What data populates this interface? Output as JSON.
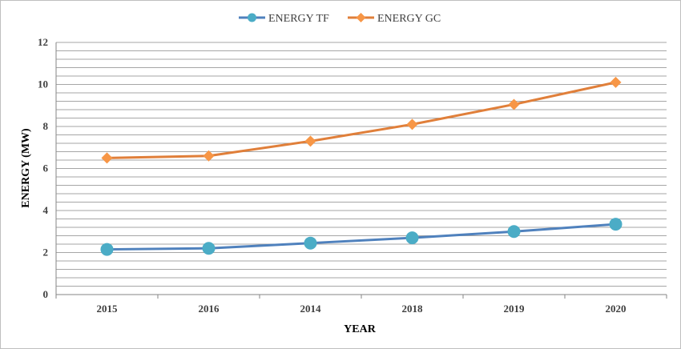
{
  "chart_data": {
    "type": "line",
    "title": "",
    "xlabel": "YEAR",
    "ylabel": "ENERGY (MW)",
    "categories": [
      "2015",
      "2016",
      "2014",
      "2018",
      "2019",
      "2020"
    ],
    "ylim": [
      0,
      12
    ],
    "y_major_ticks": [
      0,
      2,
      4,
      6,
      8,
      10,
      12
    ],
    "y_tick_labels": [
      "0",
      "2",
      "4",
      "6",
      "8",
      "10",
      "12"
    ],
    "y_minor_step": 0.4,
    "grid": true,
    "legend_position": "top",
    "series": [
      {
        "name": "ENERGY TF",
        "values": [
          2.15,
          2.2,
          2.45,
          2.7,
          3.0,
          3.35
        ],
        "color": "#4f81bd",
        "marker_color": "#4bacc6",
        "marker": "circle"
      },
      {
        "name": "ENERGY GC",
        "values": [
          6.5,
          6.6,
          7.3,
          8.1,
          9.05,
          10.1
        ],
        "color": "#e07f3a",
        "marker_color": "#f79646",
        "marker": "diamond"
      }
    ]
  }
}
